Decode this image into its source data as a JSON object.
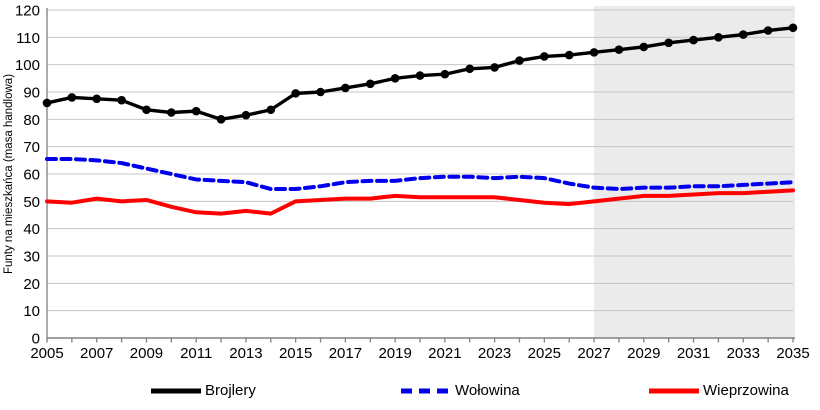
{
  "chart_data": {
    "type": "line",
    "title": "",
    "xlabel": "",
    "ylabel": "Funty na mieszkańca (masa handlowa)",
    "ylim": [
      0,
      120
    ],
    "y_tick_step": 10,
    "y_tick_labels": [
      "0",
      "10",
      "20",
      "30",
      "40",
      "50",
      "60",
      "70",
      "80",
      "90",
      "100",
      "110",
      "120"
    ],
    "x": [
      2005,
      2006,
      2007,
      2008,
      2009,
      2010,
      2011,
      2012,
      2013,
      2014,
      2015,
      2016,
      2017,
      2018,
      2019,
      2020,
      2021,
      2022,
      2023,
      2024,
      2025,
      2026,
      2027,
      2028,
      2029,
      2030,
      2031,
      2032,
      2033,
      2034,
      2035
    ],
    "x_tick_labels": [
      "2005",
      "2007",
      "2009",
      "2011",
      "2013",
      "2015",
      "2017",
      "2019",
      "2021",
      "2023",
      "2025",
      "2027",
      "2029",
      "2031",
      "2033",
      "2035"
    ],
    "x_label_step": 2,
    "grid": true,
    "legend_position": "bottom",
    "forecast_shading": {
      "start_x": 2027,
      "end_x": 2035,
      "color": "#ebebeb"
    },
    "colors": {
      "grid": "#c6c6c6",
      "axis": "#808080",
      "text": "#000000"
    },
    "series": [
      {
        "name": "Brojlery",
        "color": "#000000",
        "style": "solid",
        "markers": true,
        "values": [
          86,
          88,
          87.5,
          87,
          83.5,
          82.5,
          83,
          80,
          81.5,
          83.5,
          89.5,
          90,
          91.5,
          93,
          95,
          96,
          96.5,
          98.5,
          99,
          101.5,
          103,
          103.5,
          104.5,
          105.5,
          106.5,
          108,
          109,
          110,
          111,
          112.5,
          113.5
        ]
      },
      {
        "name": "Wołowina",
        "color": "#0000ee",
        "style": "dashed",
        "markers": false,
        "values": [
          65.5,
          65.5,
          65,
          64,
          62,
          60,
          58,
          57.5,
          57,
          54.5,
          54.5,
          55.5,
          57,
          57.5,
          57.5,
          58.5,
          59,
          59,
          58.5,
          59,
          58.5,
          56.5,
          55,
          54.5,
          55,
          55,
          55.5,
          55.5,
          56,
          56.5,
          57
        ]
      },
      {
        "name": "Wieprzowina",
        "color": "#ff0000",
        "style": "solid",
        "markers": false,
        "values": [
          50,
          49.5,
          51,
          50,
          50.5,
          48,
          46,
          45.5,
          46.5,
          45.5,
          50,
          50.5,
          51,
          51,
          52,
          51.5,
          51.5,
          51.5,
          51.5,
          50.5,
          49.5,
          49,
          50,
          51,
          52,
          52,
          52.5,
          53,
          53,
          53.5,
          54
        ]
      }
    ]
  },
  "legend": {
    "items": [
      {
        "label": "Brojlery"
      },
      {
        "label": "Wołowina"
      },
      {
        "label": "Wieprzowina"
      }
    ]
  }
}
